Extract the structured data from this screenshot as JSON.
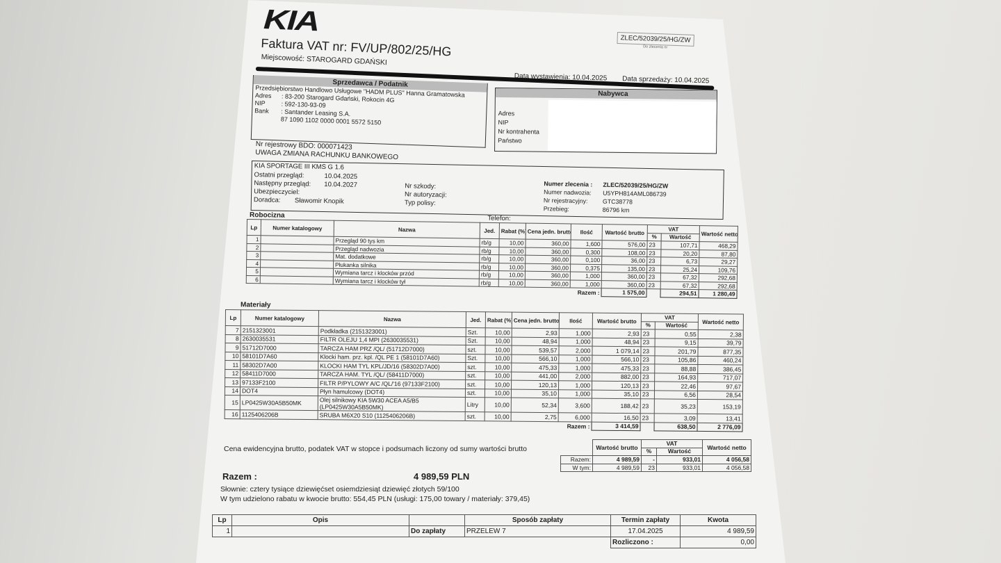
{
  "header": {
    "logo": "KIA",
    "title": "Faktura VAT nr: FV/UP/802/25/HG",
    "place_label": "Miejscowość:",
    "place": "STAROGARD GDAŃSKI",
    "order_ref": "ZLEC/52039/25/HG/ZW",
    "order_ref_caption": "Do zlecenia nr",
    "issue_date": "Data wystawienia: 10.04.2025",
    "sale_date": "Data sprzedaży: 10.04.2025"
  },
  "seller": {
    "title": "Sprzedawca / Podatnik",
    "name": "Przedsiębiorstwo Handlowo Usługowe \"HADM PLUS\" Hanna Gramatowska",
    "address_label": "Adres",
    "address": ": 83-200 Starogard Gdański, Rokocin 4G",
    "nip_label": "NIP",
    "nip": ": 592-130-93-09",
    "bank_label": "Bank",
    "bank": ": Santander Leasing S.A.",
    "account": "87 1090 1102 0000 0001 5572 5150"
  },
  "buyer": {
    "title": "Nabywca",
    "labels": [
      "Adres",
      "NIP",
      "Nr kontrahenta",
      "Państwo"
    ]
  },
  "bdo": "Nr rejestrowy BDO: 000071423",
  "notice": "UWAGA ZMIANA RACHUNKU BANKOWEGO",
  "vehicle": {
    "model": "KIA SPORTAGE III KMS G 1.6",
    "last_label": "Ostatni przegląd:",
    "last": "10.04.2025",
    "next_label": "Następny przegląd:",
    "next": "10.04.2027",
    "insurer_label": "Ubezpieczyciel:",
    "advisor_label": "Doradca:",
    "advisor": "Sławomir Knopik",
    "damage_label": "Nr szkody:",
    "auth_label": "Nr autoryzacji:",
    "policy_label": "Typ polisy:",
    "order_label": "Numer zlecenia :",
    "order": "ZLEC/52039/25/HG/ZW",
    "vin_label": "Numer nadwozia:",
    "vin": "U5YPH814AML086739",
    "reg_label": "Nr rejestracyjny:",
    "reg": "GTC38778",
    "mileage_label": "Przebieg:",
    "mileage": "86796 km",
    "phone_label": "Telefon:"
  },
  "columns": {
    "lp": "Lp",
    "catalog": "Numer katalogowy",
    "name": "Nazwa",
    "unit": "Jed.",
    "discount": "Rabat (%)",
    "unit_price": "Cena jedn. brutto",
    "qty": "Ilość",
    "gross": "Wartość brutto",
    "vat": "VAT",
    "vat_pct": "%",
    "vat_value": "Wartość",
    "net": "Wartość netto"
  },
  "labor": {
    "title": "Robocizna",
    "rows": [
      [
        "1",
        "",
        "Przegląd 90 tys km",
        "rb/g",
        "10,00",
        "360,00",
        "1,600",
        "576,00",
        "23",
        "107,71",
        "468,29"
      ],
      [
        "2",
        "",
        "Przegląd nadwozia",
        "rb/g",
        "10,00",
        "360,00",
        "0,300",
        "108,00",
        "23",
        "20,20",
        "87,80"
      ],
      [
        "3",
        "",
        "Mat. dodatkowe",
        "rb/g",
        "10,00",
        "360,00",
        "0,100",
        "36,00",
        "23",
        "6,73",
        "29,27"
      ],
      [
        "4",
        "",
        "Płukanka silnika",
        "rb/g",
        "10,00",
        "360,00",
        "0,375",
        "135,00",
        "23",
        "25,24",
        "109,76"
      ],
      [
        "5",
        "",
        "Wymiana tarcz i klocków przód",
        "rb/g",
        "10,00",
        "360,00",
        "1,000",
        "360,00",
        "23",
        "67,32",
        "292,68"
      ],
      [
        "6",
        "",
        "Wymiana tarcz i klocków tył",
        "rb/g",
        "10,00",
        "360,00",
        "1,000",
        "360,00",
        "23",
        "67,32",
        "292,68"
      ]
    ],
    "total_label": "Razem :",
    "total_gross": "1 575,00",
    "total_vat": "294,51",
    "total_net": "1 280,49"
  },
  "materials": {
    "title": "Materiały",
    "rows": [
      [
        "7",
        "2151323001",
        "Podkładka (2151323001)",
        "Szt.",
        "10,00",
        "2,93",
        "1,000",
        "2,93",
        "23",
        "0,55",
        "2,38"
      ],
      [
        "8",
        "2630035531",
        "FILTR OLEJU 1,4 MPI (2630035531)",
        "Szt.",
        "10,00",
        "48,94",
        "1,000",
        "48,94",
        "23",
        "9,15",
        "39,79"
      ],
      [
        "9",
        "51712D7000",
        "TARCZA HAM PRZ /QL/ (51712D7000)",
        "szt.",
        "10,00",
        "539,57",
        "2,000",
        "1 079,14",
        "23",
        "201,79",
        "877,35"
      ],
      [
        "10",
        "58101D7A60",
        "Klocki ham. prz. kpl. /QL PE 1 (58101D7A60)",
        "Szt.",
        "10,00",
        "566,10",
        "1,000",
        "566,10",
        "23",
        "105,86",
        "460,24"
      ],
      [
        "11",
        "58302D7A00",
        "KLOCKI HAM TYL KPL/JD/16 (58302D7A00)",
        "szt.",
        "10,00",
        "475,33",
        "1,000",
        "475,33",
        "23",
        "88,88",
        "386,45"
      ],
      [
        "12",
        "58411D7000",
        "TARCZA HAM. TYL /QL/ (58411D7000)",
        "szt.",
        "10,00",
        "441,00",
        "2,000",
        "882,00",
        "23",
        "164,93",
        "717,07"
      ],
      [
        "13",
        "97133F2100",
        "FILTR P/PYLOWY A/C /QL/'16 (97133F2100)",
        "szt.",
        "10,00",
        "120,13",
        "1,000",
        "120,13",
        "23",
        "22,46",
        "97,67"
      ],
      [
        "14",
        "DOT4",
        "Płyn hamulcowy (DOT4)",
        "szt.",
        "10,00",
        "35,10",
        "1,000",
        "35,10",
        "23",
        "6,56",
        "28,54"
      ],
      [
        "15",
        "LP0425W30A5B50MK",
        "Olej silnikowy KIA 5W30 ACEA A5/B5 (LP0425W30A5B50MK)",
        "Litry",
        "10,00",
        "52,34",
        "3,600",
        "188,42",
        "23",
        "35,23",
        "153,19"
      ],
      [
        "16",
        "1125406206B",
        "SRUBA M6X20 S10 (1125406206B)",
        "szt.",
        "10,00",
        "2,75",
        "6,000",
        "16,50",
        "23",
        "3,09",
        "13,41"
      ]
    ],
    "total_label": "Razem :",
    "total_gross": "3 414,59",
    "total_vat": "638,50",
    "total_net": "2 776,09"
  },
  "summary": {
    "note": "Cena ewidencyjna brutto, podatek VAT w stopce i podsumach liczony od sumy wartości brutto",
    "rows": [
      [
        "Razem:",
        "4 989,59",
        "-",
        "933,01",
        "4 056,58"
      ],
      [
        "W tym:",
        "4 989,59",
        "23",
        "933,01",
        "4 056,58"
      ]
    ],
    "total_label": "Razem :",
    "total": "4 989,59 PLN",
    "words": "Słownie:  cztery tysiące dziewięćset osiemdziesiąt dziewięć złotych   59/100",
    "discount": "W tym udzielono rabatu w kwocie brutto:  554,45 PLN  (usługi: 175,00   towary / materiały: 379,45)"
  },
  "payment": {
    "headers": [
      "Lp",
      "Opis",
      "",
      "Sposób zapłaty",
      "Termin zapłaty",
      "Kwota"
    ],
    "row": [
      "1",
      "",
      "Do zapłaty",
      "PRZELEW 7",
      "17.04.2025",
      "4 989,59"
    ],
    "settled_label": "Rozliczono :",
    "settled": "0,00"
  }
}
